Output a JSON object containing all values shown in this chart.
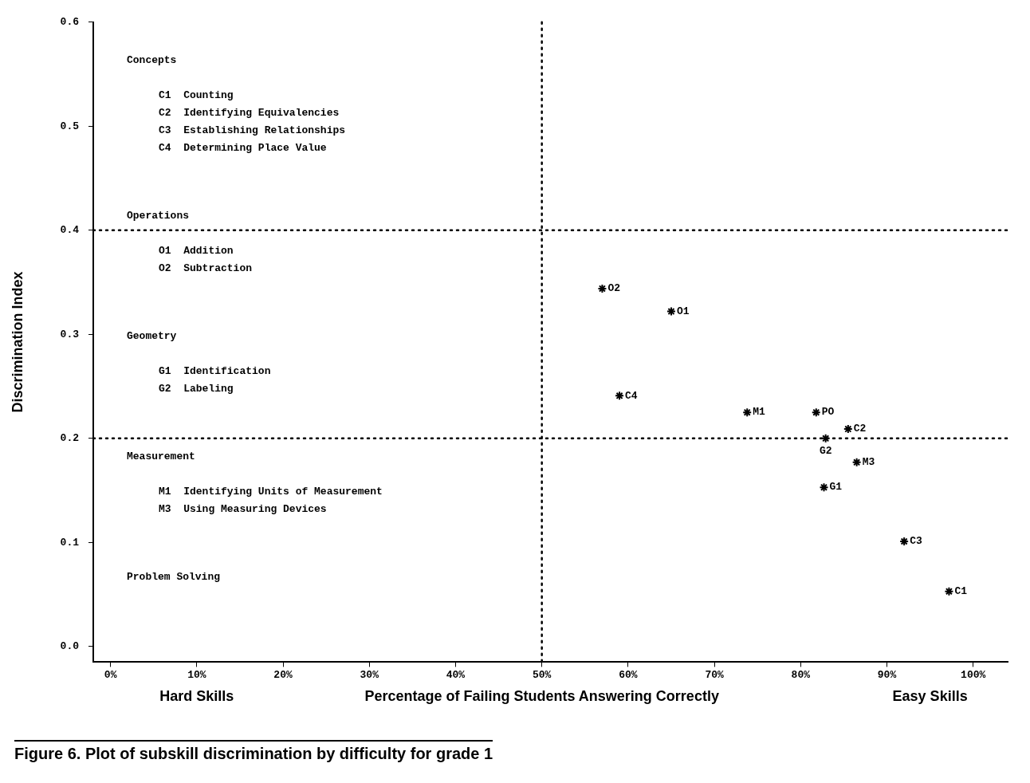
{
  "chart_data": {
    "type": "scatter",
    "title": "Figure 6. Plot of subskill discrimination by difficulty for grade 1",
    "xlabel": "Percentage of Failing Students Answering Correctly",
    "ylabel": "Discrimination Index",
    "annotations": [
      "Hard Skills",
      "Easy Skills",
      "Concepts\nC1  Counting\nC2  Identifying Equivalencies\nC3  Establishing Relationships\nC4  Determining Place Value",
      "Operations\nO1  Addition\nO2  Subtraction",
      "Geometry\nG1  Identification\nG2  Labeling",
      "Measurement\nM1  Identifying Units of Measurement\nM3  Using Measuring Devices",
      "Problem Solving"
    ],
    "xlim": [
      -2,
      104
    ],
    "xticks": [
      {
        "value": 0,
        "label": "0%"
      },
      {
        "value": 10,
        "label": "10%"
      },
      {
        "value": 20,
        "label": "20%"
      },
      {
        "value": 30,
        "label": "30%"
      },
      {
        "value": 40,
        "label": "40%"
      },
      {
        "value": 50,
        "label": "50%"
      },
      {
        "value": 60,
        "label": "60%"
      },
      {
        "value": 70,
        "label": "70%"
      },
      {
        "value": 80,
        "label": "80%"
      },
      {
        "value": 90,
        "label": "90%"
      },
      {
        "value": 100,
        "label": "100%"
      }
    ],
    "ylim": [
      -0.015,
      0.6
    ],
    "yticks": [
      {
        "value": 0,
        "label": "0.0"
      },
      0.1,
      0.2,
      0.3,
      0.4,
      0.5,
      0.6
    ],
    "grid": false,
    "legend": false,
    "marker": "cross",
    "ref_lines": [
      {
        "axis": "x",
        "value": 50,
        "color": "#000000",
        "line_style": "dotted"
      },
      {
        "axis": "y",
        "value": 0.4,
        "color": "#000000",
        "line_style": "dotted"
      },
      {
        "axis": "y",
        "value": 0.2,
        "color": "#000000",
        "line_style": "dotted"
      }
    ],
    "series": [
      {
        "name": "O2",
        "color": "#000000",
        "x": [
          57.0
        ],
        "values": [
          0.344
        ]
      },
      {
        "name": "O1",
        "color": "#000000",
        "x": [
          65.0
        ],
        "values": [
          0.322
        ]
      },
      {
        "name": "C4",
        "color": "#000000",
        "x": [
          59.0
        ],
        "values": [
          0.241
        ]
      },
      {
        "name": "M1",
        "color": "#000000",
        "x": [
          73.8
        ],
        "values": [
          0.225
        ]
      },
      {
        "name": "PO",
        "color": "#000000",
        "x": [
          81.8
        ],
        "values": [
          0.225
        ]
      },
      {
        "name": "C2",
        "color": "#000000",
        "x": [
          85.5
        ],
        "values": [
          0.209
        ]
      },
      {
        "name": "G2",
        "color": "#000000",
        "x": [
          82.9
        ],
        "values": [
          0.2
        ]
      },
      {
        "name": "M3",
        "color": "#000000",
        "x": [
          86.5
        ],
        "values": [
          0.177
        ]
      },
      {
        "name": "G1",
        "color": "#000000",
        "x": [
          82.7
        ],
        "values": [
          0.153
        ]
      },
      {
        "name": "C3",
        "color": "#000000",
        "x": [
          92.0
        ],
        "values": [
          0.101
        ]
      },
      {
        "name": "C1",
        "color": "#000000",
        "x": [
          97.2
        ],
        "values": [
          0.053
        ]
      }
    ]
  }
}
